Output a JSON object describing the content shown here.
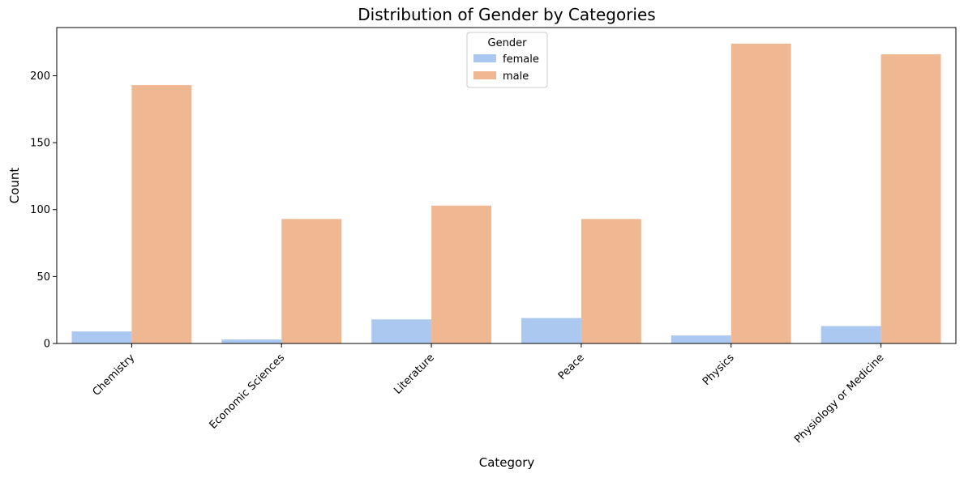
{
  "chart_data": {
    "type": "bar",
    "title": "Distribution of Gender by Categories",
    "xlabel": "Category",
    "ylabel": "Count",
    "categories": [
      "Chemistry",
      "Economic Sciences",
      "Literature",
      "Peace",
      "Physics",
      "Physiology or Medicine"
    ],
    "series": [
      {
        "name": "female",
        "color": "#abc9f0",
        "values": [
          9,
          3,
          18,
          19,
          6,
          13
        ]
      },
      {
        "name": "male",
        "color": "#f0b892",
        "values": [
          193,
          93,
          103,
          93,
          224,
          216
        ]
      }
    ],
    "ylim": [
      0,
      236
    ],
    "yticks": [
      0,
      50,
      100,
      150,
      200
    ],
    "legend": {
      "title": "Gender",
      "placement": "upper-center"
    },
    "grid": false
  }
}
